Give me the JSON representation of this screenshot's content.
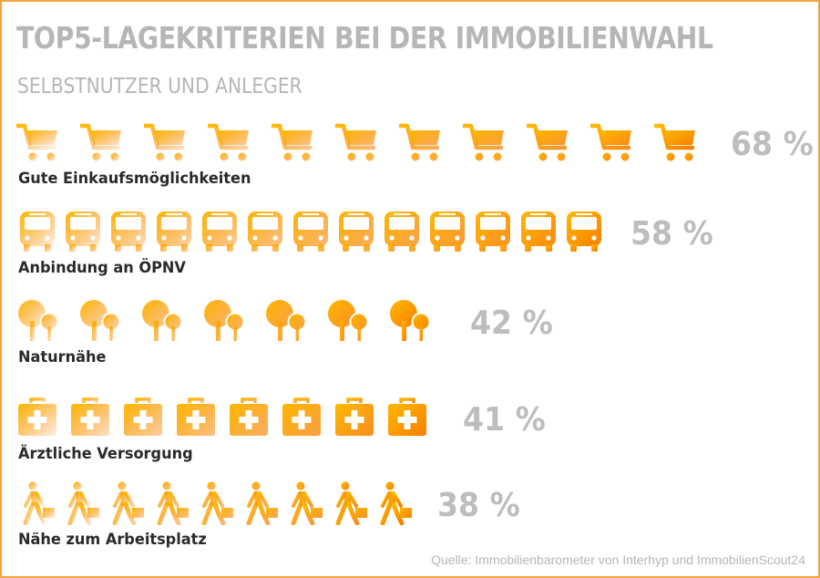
{
  "header": {
    "title": "TOP5-LAGEKRITERIEN BEI DER IMMOBILIENWAHL",
    "subtitle": "SELBSTNUTZER UND ANLEGER"
  },
  "footer": {
    "source": "Quelle: Immobilienbarometer von Interhyp und ImmobilienScout24"
  },
  "colors": {
    "icon_light": "#ffb800",
    "icon_dark": "#f77f00",
    "percent_text": "#bdbdbd",
    "label_text": "#2a2a2a",
    "border": "#f4a340"
  },
  "chart_data": {
    "type": "pictograph",
    "title": "TOP5-LAGEKRITERIEN BEI DER IMMOBILIENWAHL",
    "subtitle": "SELBSTNUTZER UND ANLEGER",
    "categories": [
      "Gute Einkaufsmöglichkeiten",
      "Anbindung an ÖPNV",
      "Naturnähe",
      "Ärztliche Versorgung",
      "Nähe zum Arbeitsplatz"
    ],
    "values": [
      68,
      58,
      42,
      41,
      38
    ],
    "value_labels": [
      "68 %",
      "58 %",
      "42 %",
      "41 %",
      "38 %"
    ],
    "icons": [
      "shopping-cart-icon",
      "bus-icon",
      "tree-icon",
      "first-aid-kit-icon",
      "walking-person-icon"
    ],
    "icon_counts": [
      11,
      13,
      7,
      8,
      9
    ]
  }
}
